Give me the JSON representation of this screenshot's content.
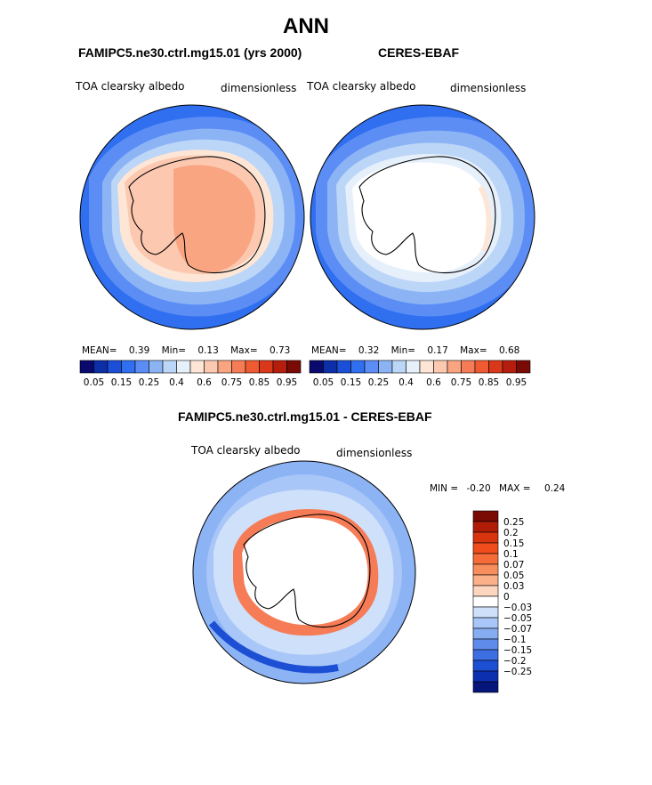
{
  "page": {
    "title": "ANN"
  },
  "panels": [
    {
      "title": "FAMIPC5.ne30.ctrl.mg15.01 (yrs 2000)",
      "variable": "TOA clearsky albedo",
      "units": "dimensionless",
      "stats": {
        "mean_label": "MEAN=",
        "mean": "0.39",
        "min_label": "Min=",
        "min": "0.13",
        "max_label": "Max=",
        "max": "0.73"
      }
    },
    {
      "title": "CERES-EBAF",
      "variable": "TOA clearsky albedo",
      "units": "dimensionless",
      "stats": {
        "mean_label": "MEAN=",
        "mean": "0.32",
        "min_label": "Min=",
        "min": "0.17",
        "max_label": "Max=",
        "max": "0.68"
      }
    },
    {
      "title": "FAMIPC5.ne30.ctrl.mg15.01 - CERES-EBAF",
      "variable": "TOA clearsky albedo",
      "units": "dimensionless",
      "stats": {
        "min_label": "MIN =",
        "min": "-0.20",
        "max_label": "MAX =",
        "max": "0.24"
      }
    }
  ],
  "colorbars": {
    "field": {
      "colors": [
        "#0a0a6e",
        "#0c2fa8",
        "#1c4fd8",
        "#2f6ff0",
        "#5b8df5",
        "#8cb4f5",
        "#bcd6f8",
        "#e6f0fb",
        "#fde6d6",
        "#fcc8b0",
        "#f9a582",
        "#f57c56",
        "#ef5a30",
        "#d9381a",
        "#b51e0c",
        "#7a0a04"
      ],
      "tick_labels": [
        "0.05",
        "0.15",
        "0.25",
        "0.4",
        "0.6",
        "0.75",
        "0.85",
        "0.95"
      ]
    },
    "diff": {
      "colors": [
        "#7a0a04",
        "#b01c08",
        "#d8340e",
        "#f04c1c",
        "#f56c38",
        "#f88e5e",
        "#fbb08a",
        "#fdd6c0",
        "#ffffff",
        "#cfe0fa",
        "#a8c6f7",
        "#86acf2",
        "#5f8ceb",
        "#3d6fe3",
        "#1d4fd4",
        "#0c2fb0",
        "#06157a"
      ],
      "tick_labels": [
        "0.25",
        "0.2",
        "0.15",
        "0.1",
        "0.07",
        "0.05",
        "0.03",
        "0",
        "−0.03",
        "−0.05",
        "−0.07",
        "−0.1",
        "−0.15",
        "−0.2",
        "−0.25"
      ]
    }
  },
  "chart_data": [
    {
      "type": "heatmap",
      "title": "FAMIPC5.ne30.ctrl.mg15.01 (yrs 2000)",
      "subtitle": "TOA clearsky albedo",
      "units": "dimensionless",
      "projection": "south-polar-stereographic",
      "levels": [
        0.05,
        0.1,
        0.15,
        0.2,
        0.25,
        0.3,
        0.4,
        0.5,
        0.6,
        0.7,
        0.75,
        0.8,
        0.85,
        0.9,
        0.95
      ],
      "mean": 0.39,
      "min": 0.13,
      "max": 0.73
    },
    {
      "type": "heatmap",
      "title": "CERES-EBAF",
      "subtitle": "TOA clearsky albedo",
      "units": "dimensionless",
      "projection": "south-polar-stereographic",
      "levels": [
        0.05,
        0.1,
        0.15,
        0.2,
        0.25,
        0.3,
        0.4,
        0.5,
        0.6,
        0.7,
        0.75,
        0.8,
        0.85,
        0.9,
        0.95
      ],
      "mean": 0.32,
      "min": 0.17,
      "max": 0.68
    },
    {
      "type": "heatmap",
      "title": "FAMIPC5.ne30.ctrl.mg15.01 - CERES-EBAF",
      "subtitle": "TOA clearsky albedo",
      "units": "dimensionless",
      "projection": "south-polar-stereographic",
      "levels": [
        -0.25,
        -0.2,
        -0.15,
        -0.1,
        -0.07,
        -0.05,
        -0.03,
        0,
        0.03,
        0.05,
        0.07,
        0.1,
        0.15,
        0.2,
        0.25
      ],
      "min": -0.2,
      "max": 0.24
    }
  ]
}
